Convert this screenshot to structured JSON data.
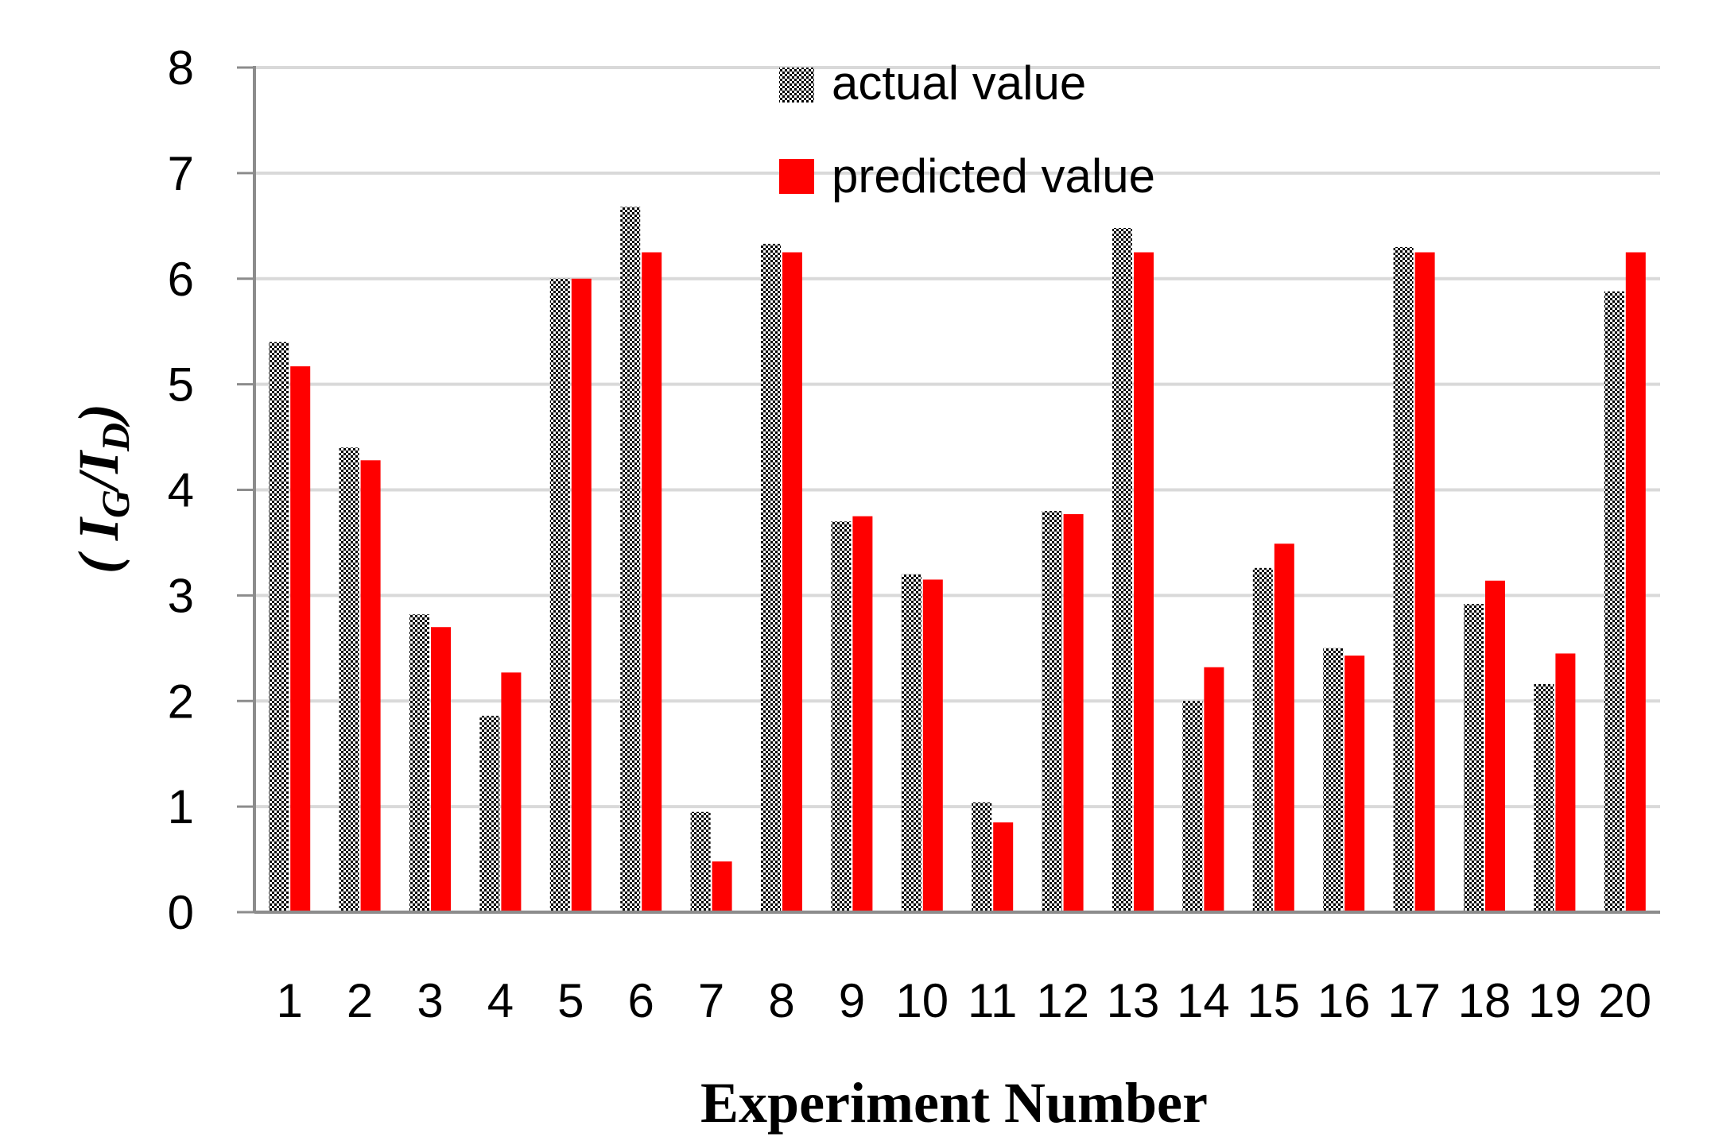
{
  "chart_data": {
    "type": "bar",
    "title": "",
    "xlabel": "Experiment Number",
    "ylabel": {
      "open": "( ",
      "i1": "I",
      "sub1": "G",
      "slash": "/",
      "i2": "I",
      "sub2": "D",
      "close": ")"
    },
    "ylim": [
      0,
      8
    ],
    "yticks": [
      0,
      1,
      2,
      3,
      4,
      5,
      6,
      7,
      8
    ],
    "grid": true,
    "legend_position": "top-center",
    "categories": [
      "1",
      "2",
      "3",
      "4",
      "5",
      "6",
      "7",
      "8",
      "9",
      "10",
      "11",
      "12",
      "13",
      "14",
      "15",
      "16",
      "17",
      "18",
      "19",
      "20"
    ],
    "series": [
      {
        "name": "actual value",
        "color": "#000000",
        "pattern": "checker",
        "values": [
          5.4,
          4.4,
          2.82,
          1.86,
          6.0,
          6.68,
          0.95,
          6.33,
          3.7,
          3.2,
          1.04,
          3.8,
          6.48,
          2.0,
          3.26,
          2.5,
          6.3,
          2.92,
          2.16,
          5.88
        ]
      },
      {
        "name": "predicted value",
        "color": "#ff0000",
        "pattern": "solid",
        "values": [
          5.17,
          4.28,
          2.7,
          2.27,
          6.0,
          6.25,
          0.48,
          6.25,
          3.75,
          3.15,
          0.85,
          3.77,
          6.25,
          2.32,
          3.49,
          2.43,
          6.25,
          3.14,
          2.45,
          6.25
        ]
      }
    ]
  }
}
